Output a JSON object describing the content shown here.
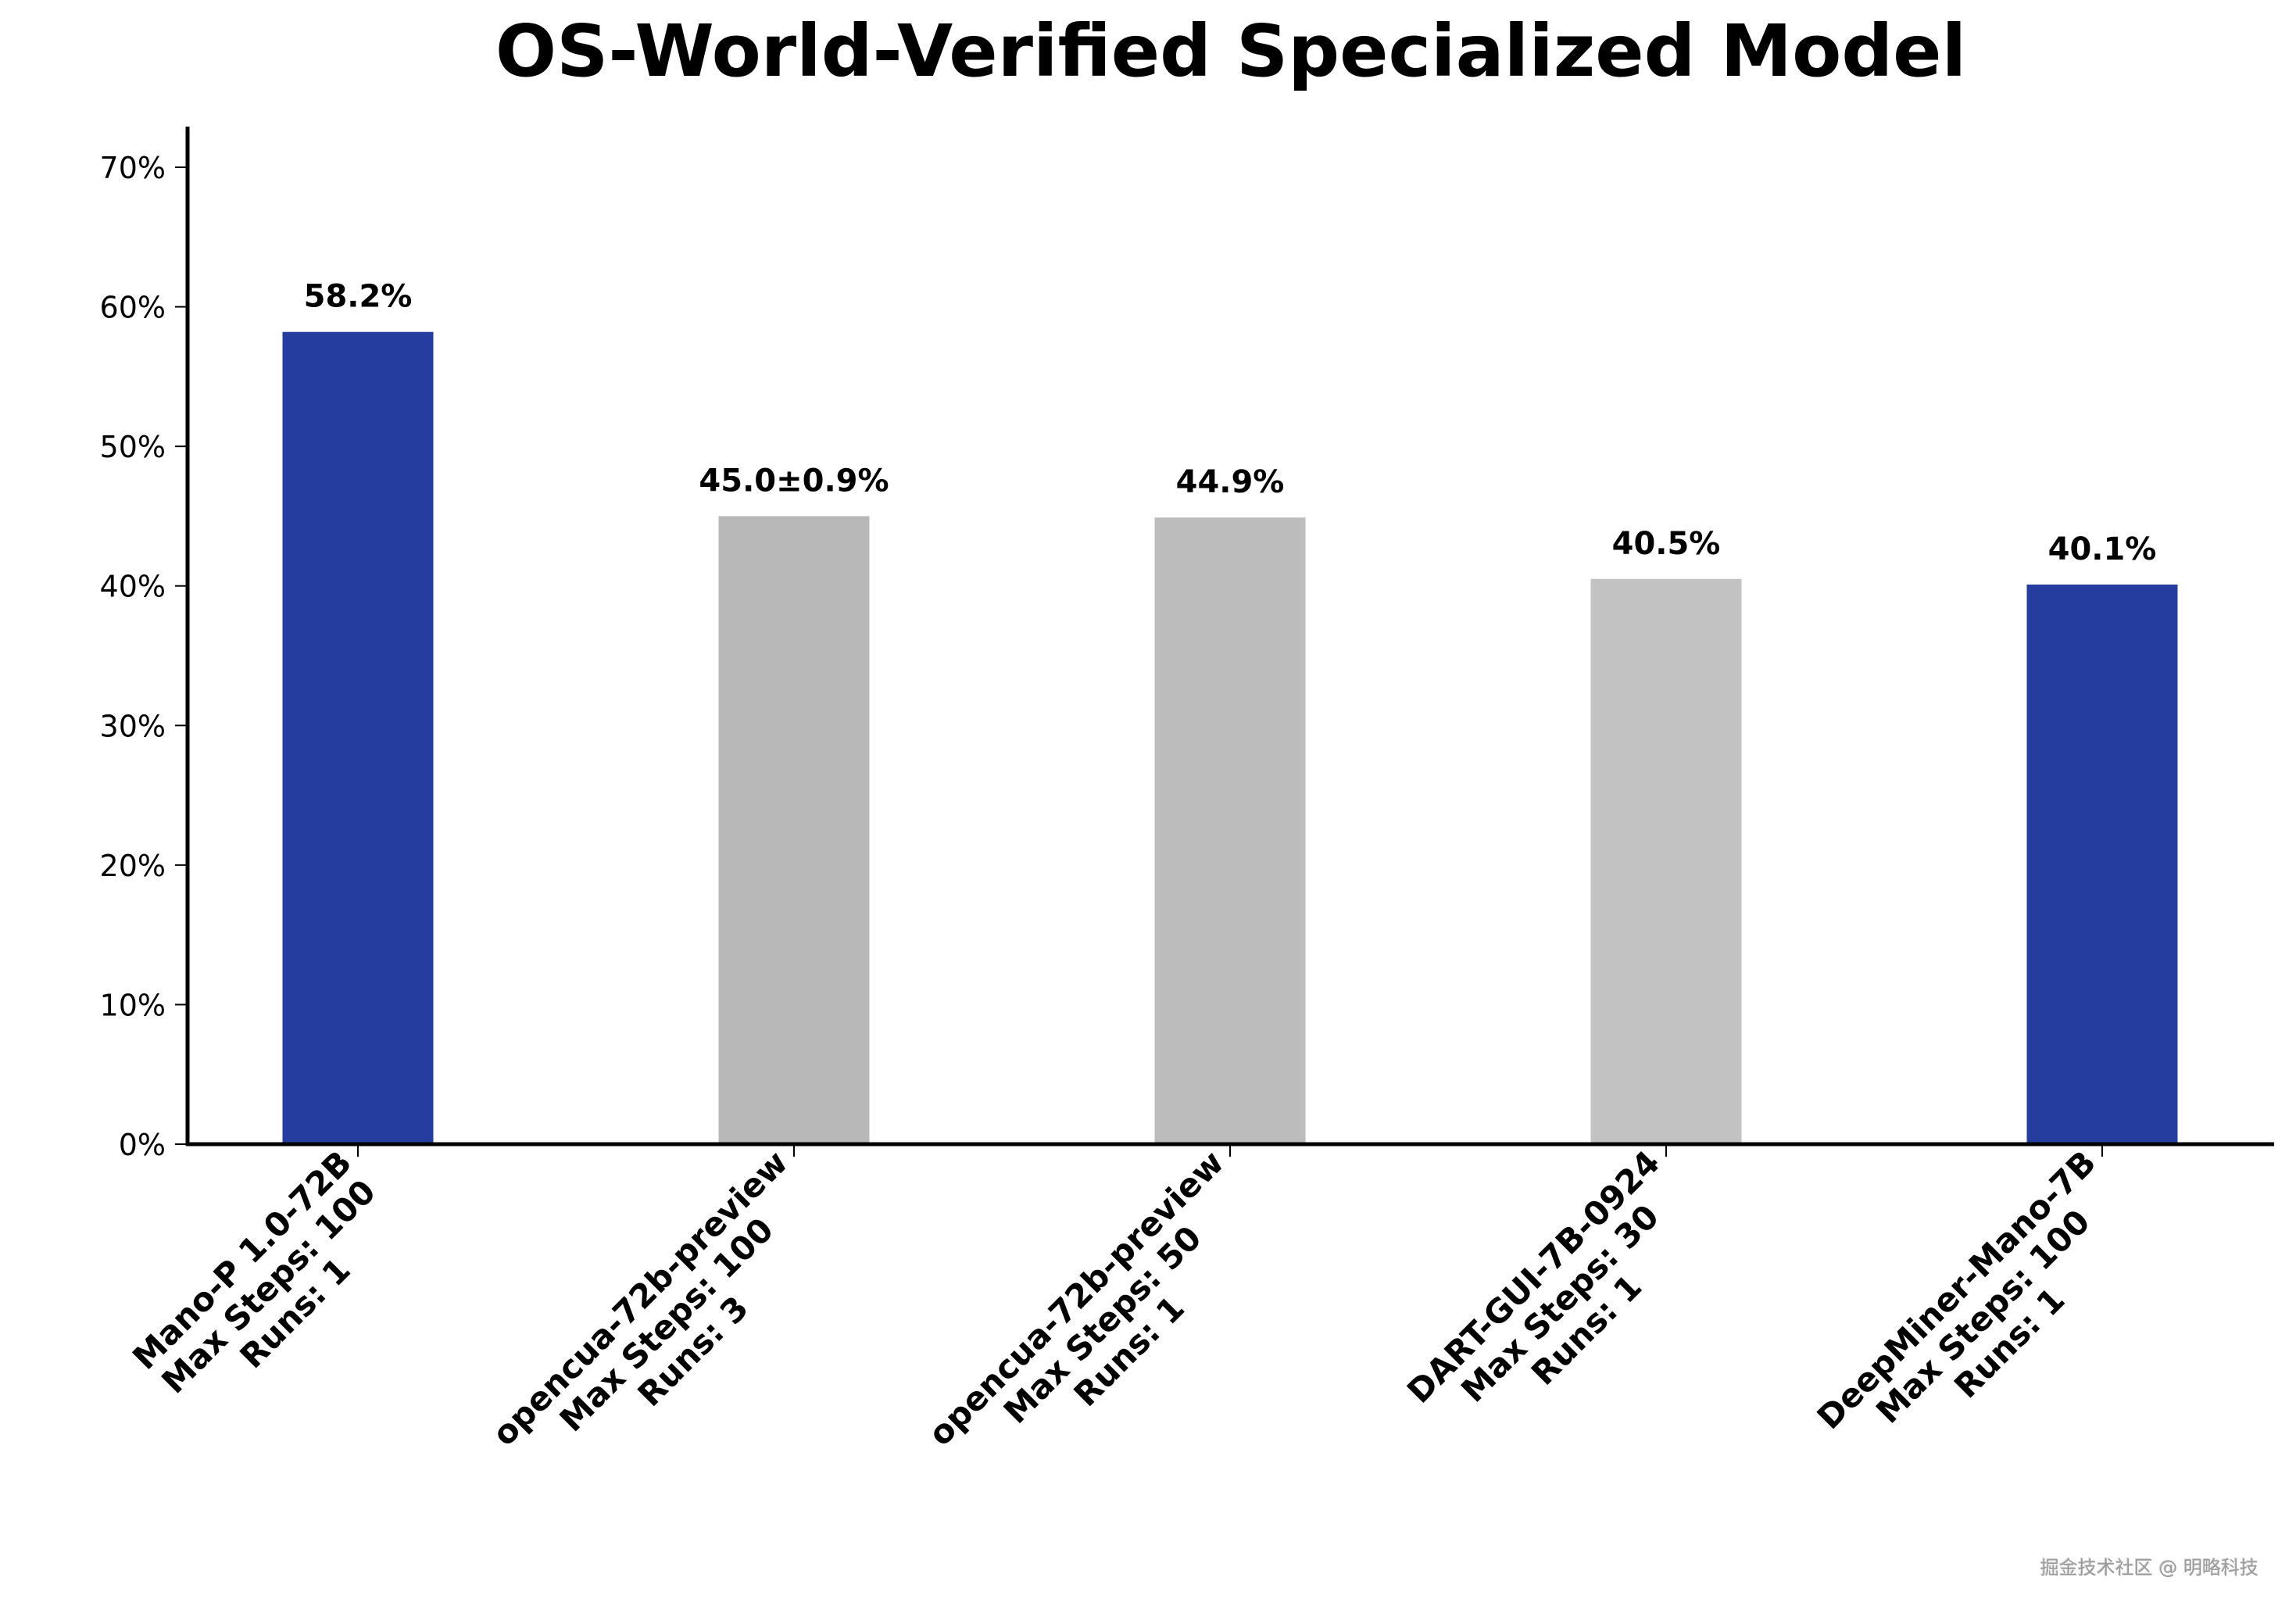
{
  "chart_data": {
    "type": "bar",
    "title": "OS-World-Verified Specialized Model",
    "xlabel": "",
    "ylabel": "",
    "ylim": [
      0,
      72
    ],
    "yticks": [
      0,
      10,
      20,
      30,
      40,
      50,
      60,
      70
    ],
    "ytick_labels": [
      "0%",
      "10%",
      "20%",
      "30%",
      "40%",
      "50%",
      "60%",
      "70%"
    ],
    "grid": false,
    "legend": null,
    "categories": [
      [
        "Mano-P 1.0-72B",
        "Max Steps: 100",
        "Runs: 1"
      ],
      [
        "opencua-72b-preview",
        "Max Steps: 100",
        "Runs: 3"
      ],
      [
        "opencua-72b-preview",
        "Max Steps: 50",
        "Runs: 1"
      ],
      [
        "DART-GUI-7B-0924",
        "Max Steps: 30",
        "Runs: 1"
      ],
      [
        "DeepMiner-Mano-7B",
        "Max Steps: 100",
        "Runs: 1"
      ]
    ],
    "values": [
      58.2,
      45.0,
      44.9,
      40.5,
      40.1
    ],
    "value_labels": [
      "58.2%",
      "45.0±0.9%",
      "44.9%",
      "40.5%",
      "40.1%"
    ],
    "error": [
      null,
      0.9,
      null,
      null,
      null
    ],
    "bar_colors": [
      "#243d9e",
      "#b8b8b8",
      "#bcbcbc",
      "#c2c2c2",
      "#243d9e"
    ],
    "x_label_rotation": 45
  },
  "watermark": "掘金技术社区 @ 明略科技"
}
